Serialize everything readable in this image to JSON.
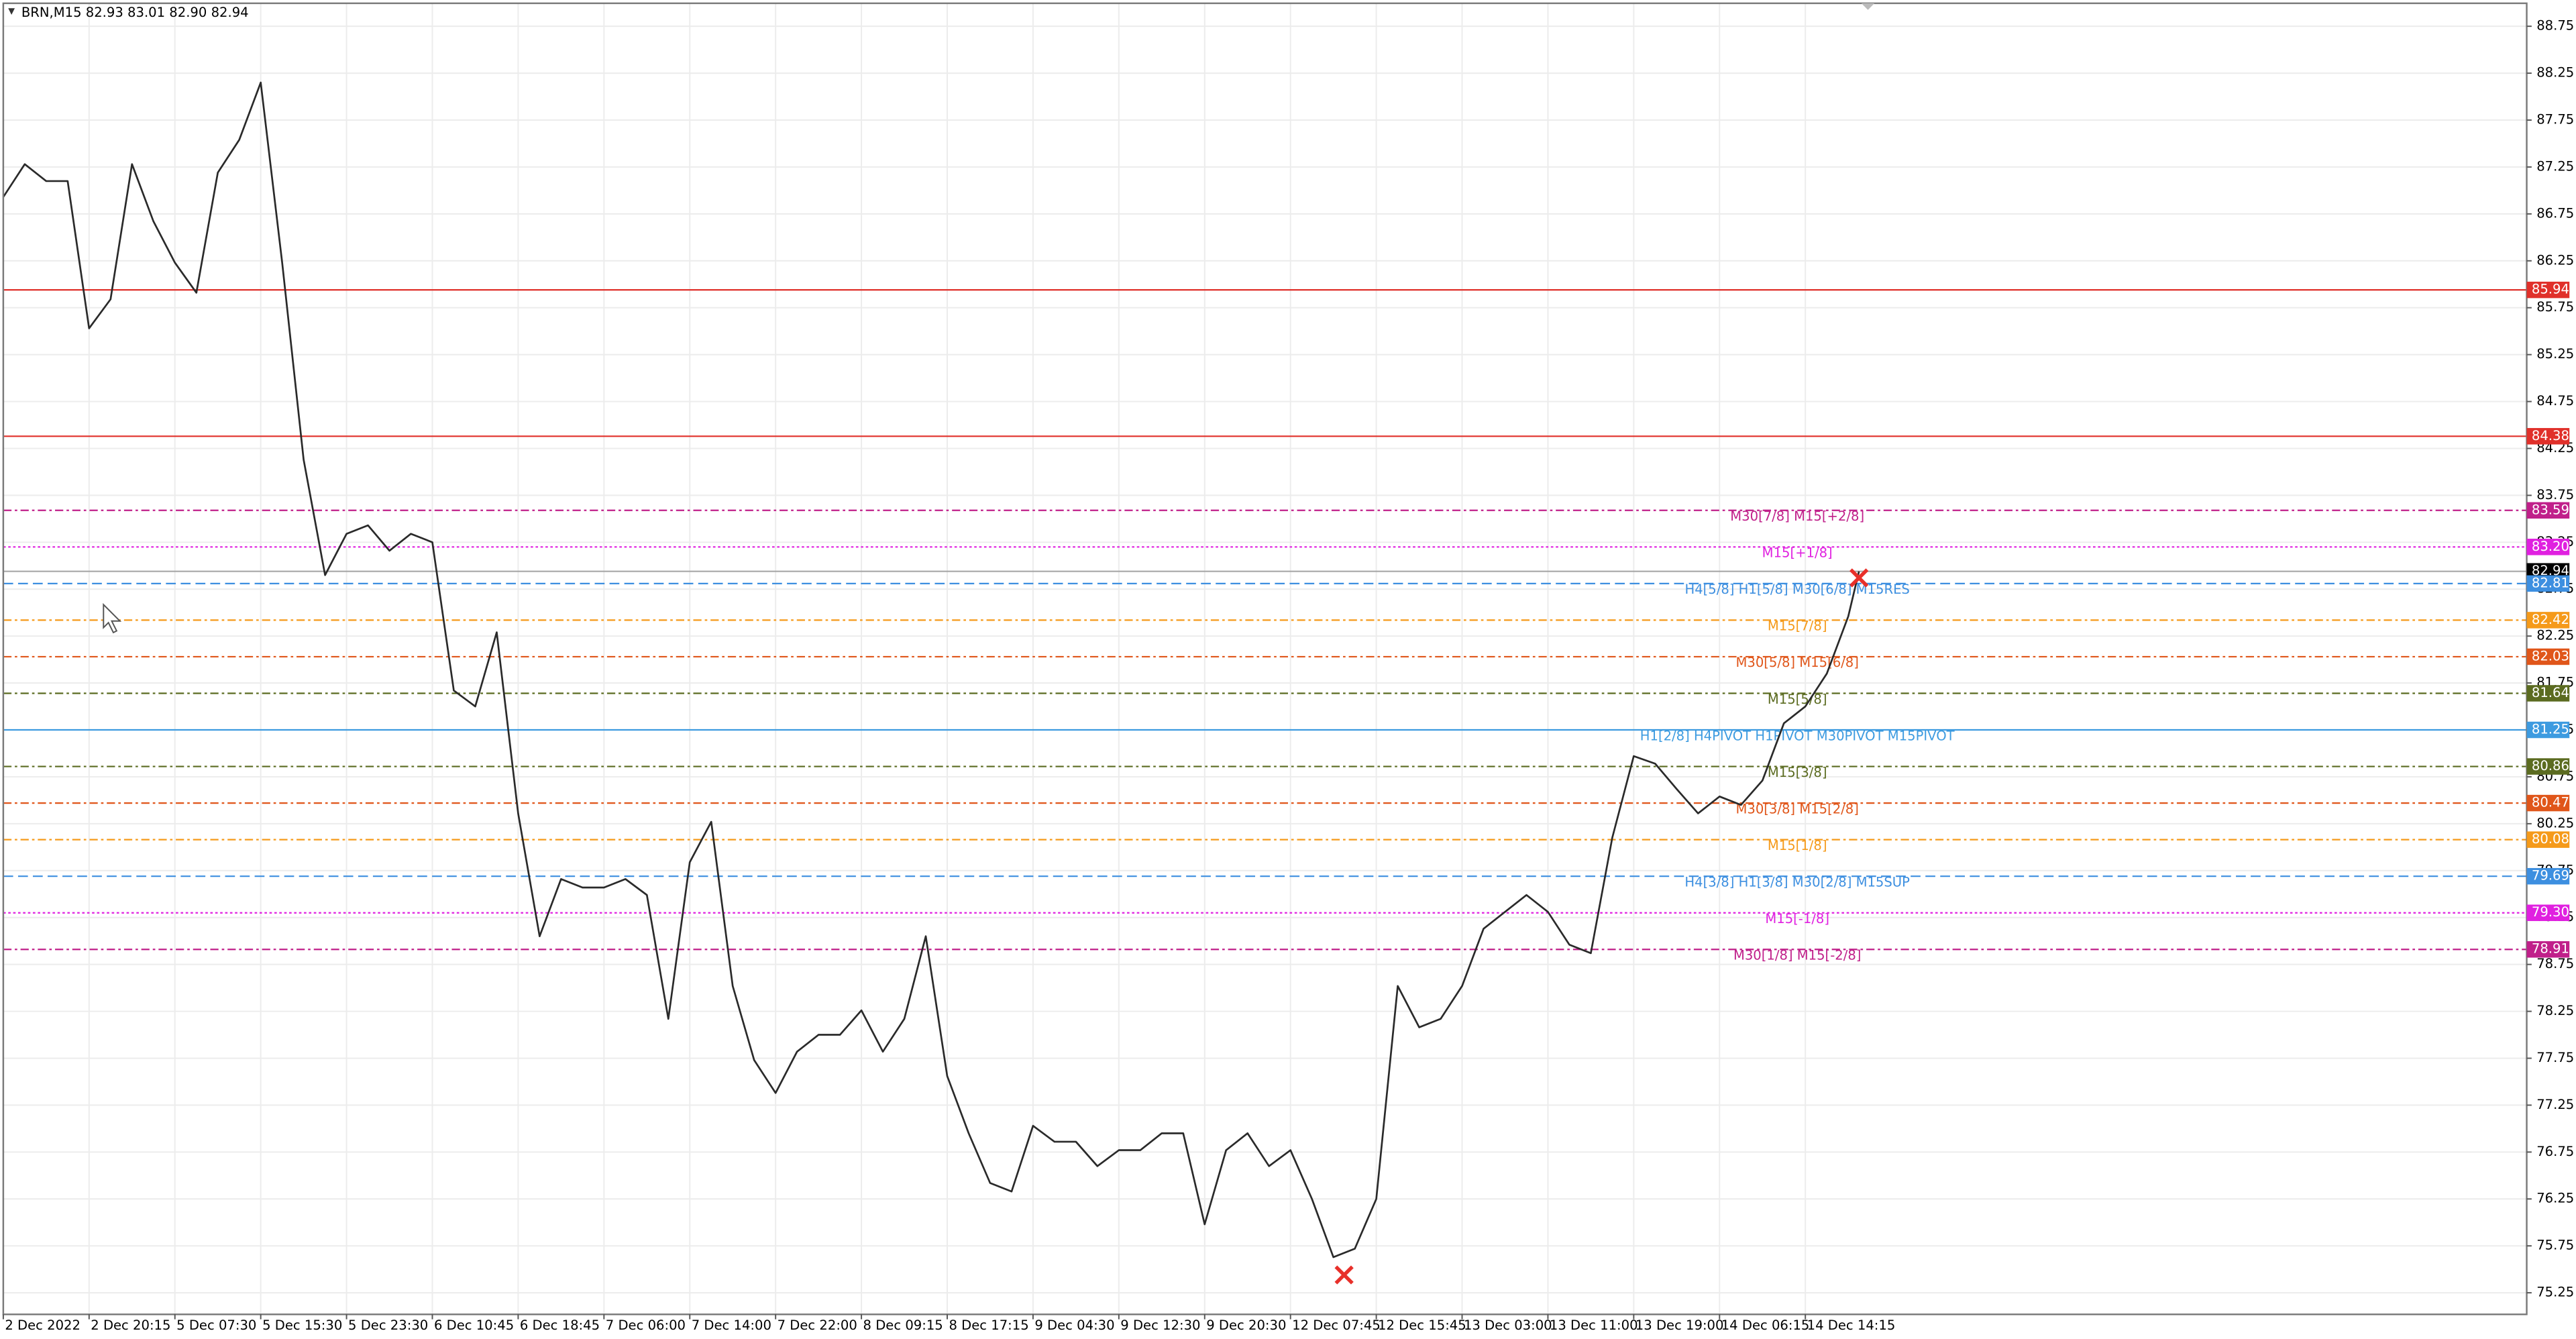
{
  "header": "BRN,M15  82.93 83.01 82.90 82.94",
  "chart_data": {
    "type": "line",
    "color": "#2a2a2a",
    "grid": true,
    "xlim": [
      0,
      941
    ],
    "ylim": [
      75.02,
      88.995
    ],
    "xticks": [
      {
        "value": 0,
        "label": "2 Dec 2022"
      },
      {
        "value": 32,
        "label": "2 Dec 20:15"
      },
      {
        "value": 64,
        "label": "5 Dec 07:30"
      },
      {
        "value": 96,
        "label": "5 Dec 15:30"
      },
      {
        "value": 128,
        "label": "5 Dec 23:30"
      },
      {
        "value": 160,
        "label": "6 Dec 10:45"
      },
      {
        "value": 192,
        "label": "6 Dec 18:45"
      },
      {
        "value": 224,
        "label": "7 Dec 06:00"
      },
      {
        "value": 256,
        "label": "7 Dec 14:00"
      },
      {
        "value": 288,
        "label": "7 Dec 22:00"
      },
      {
        "value": 320,
        "label": "8 Dec 09:15"
      },
      {
        "value": 352,
        "label": "8 Dec 17:15"
      },
      {
        "value": 384,
        "label": "9 Dec 04:30"
      },
      {
        "value": 416,
        "label": "9 Dec 12:30"
      },
      {
        "value": 448,
        "label": "9 Dec 20:30"
      },
      {
        "value": 480,
        "label": "12 Dec 07:45"
      },
      {
        "value": 512,
        "label": "12 Dec 15:45"
      },
      {
        "value": 544,
        "label": "13 Dec 03:00"
      },
      {
        "value": 576,
        "label": "13 Dec 11:00"
      },
      {
        "value": 608,
        "label": "13 Dec 19:00"
      },
      {
        "value": 640,
        "label": "14 Dec 06:15"
      },
      {
        "value": 672,
        "label": "14 Dec 14:15"
      }
    ],
    "yticks": [
      88.75,
      88.25,
      87.75,
      87.25,
      86.75,
      86.25,
      85.75,
      85.25,
      84.75,
      84.25,
      83.75,
      83.25,
      82.75,
      82.25,
      81.75,
      81.25,
      80.75,
      80.25,
      79.75,
      79.25,
      78.75,
      78.25,
      77.75,
      77.25,
      76.75,
      76.25,
      75.75,
      75.25
    ],
    "x": [
      0,
      8,
      16,
      24,
      32,
      40,
      48,
      56,
      64,
      72,
      80,
      88,
      96,
      104,
      112,
      120,
      128,
      136,
      144,
      152,
      160,
      168,
      176,
      184,
      192,
      200,
      208,
      216,
      224,
      232,
      240,
      248,
      256,
      264,
      272,
      280,
      288,
      296,
      304,
      312,
      320,
      328,
      336,
      344,
      352,
      360,
      368,
      376,
      384,
      392,
      400,
      408,
      416,
      424,
      432,
      440,
      448,
      456,
      464,
      472,
      480,
      488,
      496,
      504,
      512,
      520,
      528,
      536,
      544,
      552,
      560,
      568,
      576,
      584,
      592,
      600,
      608,
      616,
      624,
      632,
      640,
      648,
      656,
      664,
      672,
      680,
      688,
      692
    ],
    "values": [
      86.93,
      87.28,
      87.1,
      87.1,
      85.53,
      85.84,
      87.28,
      86.67,
      86.23,
      85.91,
      87.19,
      87.54,
      88.15,
      86.23,
      84.13,
      82.9,
      83.34,
      83.43,
      83.16,
      83.34,
      83.25,
      81.67,
      81.5,
      82.29,
      80.36,
      79.05,
      79.66,
      79.57,
      79.57,
      79.66,
      79.49,
      78.17,
      79.84,
      80.27,
      78.52,
      77.73,
      77.38,
      77.82,
      78.0,
      78.0,
      78.26,
      77.82,
      78.17,
      79.05,
      77.56,
      76.95,
      76.42,
      76.33,
      77.03,
      76.86,
      76.86,
      76.6,
      76.77,
      76.77,
      76.95,
      76.95,
      75.98,
      76.77,
      76.95,
      76.6,
      76.77,
      76.25,
      75.63,
      75.72,
      76.25,
      78.52,
      78.08,
      78.17,
      78.52,
      79.13,
      79.31,
      79.49,
      79.31,
      78.96,
      78.87,
      80.1,
      80.97,
      80.89,
      80.62,
      80.36,
      80.54,
      80.45,
      80.71,
      81.32,
      81.5,
      81.85,
      82.46,
      82.94
    ],
    "markers": {
      "color": "#e8302a",
      "x": [
        500,
        692
      ],
      "values": [
        75.44,
        82.87
      ]
    },
    "levels": [
      {
        "value": 85.94,
        "color": "#e0302a",
        "dash": "solid"
      },
      {
        "value": 84.38,
        "color": "#e0302a",
        "dash": "solid"
      },
      {
        "value": 83.59,
        "color": "#c0208a",
        "dash": "dashdot",
        "text": "M30[7/8] M15[+2/8]"
      },
      {
        "value": 83.2,
        "value_label": "83.20",
        "color": "#e020e0",
        "dash": "dotted",
        "text": "M15[+1/8]"
      },
      {
        "value": 82.94,
        "color": "#000000",
        "dash": "current"
      },
      {
        "value": 82.81,
        "color": "#3d8fe0",
        "dash": "dashed",
        "text": "H4[5/8] H1[5/8] M30[6/8] M15RES"
      },
      {
        "value": 82.42,
        "color": "#f59a1a",
        "dash": "dashdot",
        "text": "M15[7/8]"
      },
      {
        "value": 82.03,
        "color": "#e0561a",
        "dash": "dashdot",
        "text": "M30[5/8] M15[6/8]"
      },
      {
        "value": 81.64,
        "color": "#5b6b20",
        "dash": "dashdot",
        "text": "M15[5/8]"
      },
      {
        "value": 81.25,
        "color": "#3d9be0",
        "dash": "solid",
        "text": "H1[2/8] H4PIVOT H1PIVOT M30PIVOT M15PIVOT"
      },
      {
        "value": 80.86,
        "color": "#5b6b20",
        "dash": "dashdot",
        "text": "M15[3/8]"
      },
      {
        "value": 80.47,
        "color": "#e0561a",
        "dash": "dashdot",
        "text": "M30[3/8] M15[2/8]"
      },
      {
        "value": 80.08,
        "color": "#f59a1a",
        "dash": "dashdot",
        "text": "M15[1/8]"
      },
      {
        "value": 79.69,
        "color": "#3d8fe0",
        "dash": "dashed",
        "text": "H4[3/8] H1[3/8] M30[2/8] M15SUP"
      },
      {
        "value": 79.3,
        "value_label": "79.30",
        "color": "#e020e0",
        "dash": "dotted",
        "text": "M15[-1/8]"
      },
      {
        "value": 78.91,
        "color": "#c0208a",
        "dash": "dashdot",
        "text": "M30[1/8] M15[-2/8]"
      }
    ]
  }
}
